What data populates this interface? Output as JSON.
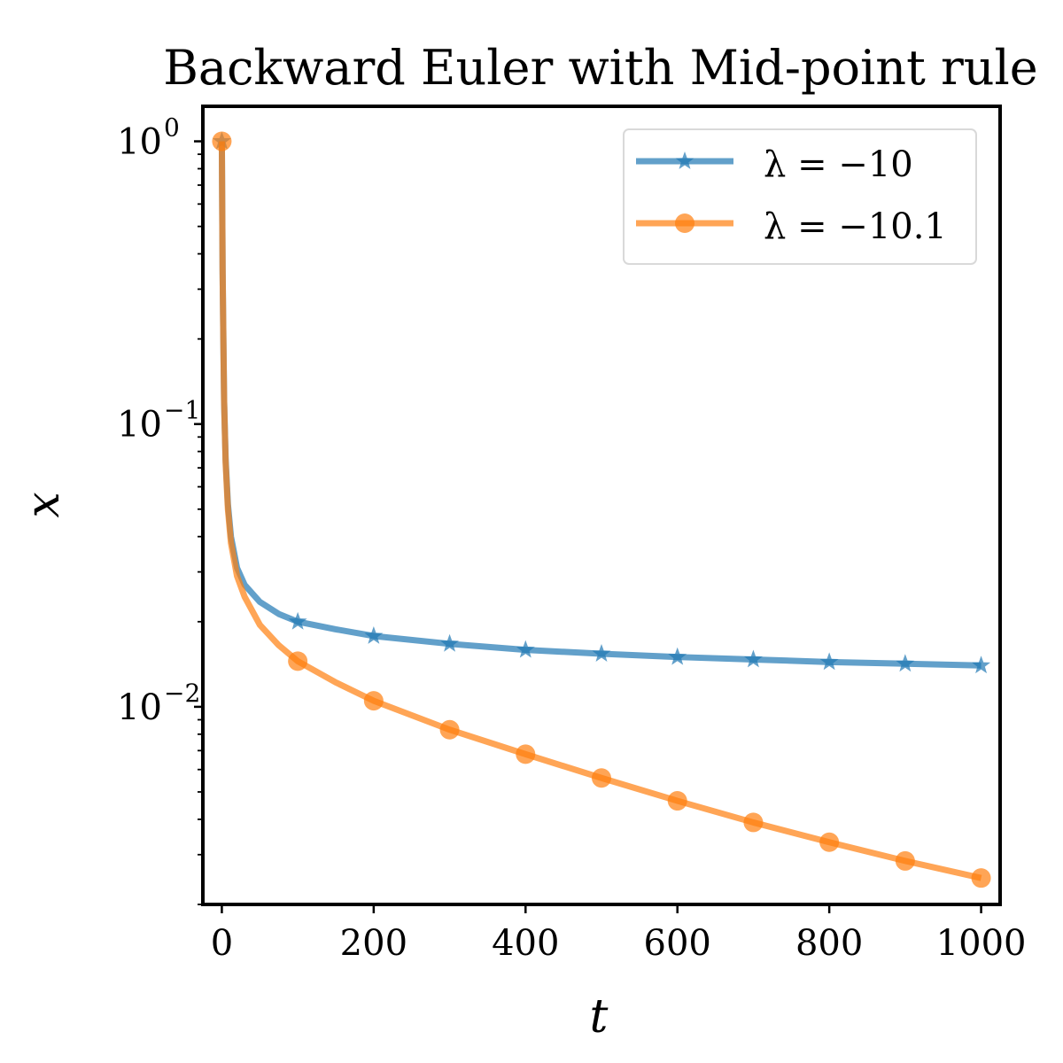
{
  "chart_data": {
    "type": "line",
    "title": "Backward Euler with Mid-point rule",
    "xlabel": "t",
    "ylabel": "x",
    "yscale": "log",
    "xlim": [
      -25,
      1025
    ],
    "ylim": [
      0.002,
      1.33
    ],
    "x_ticks": [
      0,
      200,
      400,
      600,
      800,
      1000
    ],
    "x_tick_labels": [
      "0",
      "200",
      "400",
      "600",
      "800",
      "1000"
    ],
    "y_ticks": [
      1,
      0.1,
      0.01
    ],
    "y_tick_labels": [
      {
        "base": "10",
        "exp": "0"
      },
      {
        "base": "10",
        "exp": "−1"
      },
      {
        "base": "10",
        "exp": "−2"
      }
    ],
    "grid": false,
    "legend_position": "top-right",
    "series": [
      {
        "name": "λ = −10",
        "color": "#1f77b4",
        "marker": "star",
        "curve_x": [
          0,
          1,
          2,
          3,
          5,
          8,
          12,
          20,
          30,
          50,
          75,
          100,
          150,
          200,
          300,
          400,
          500,
          600,
          700,
          800,
          900,
          1000
        ],
        "curve_y": [
          1.0,
          0.35,
          0.2,
          0.12,
          0.075,
          0.052,
          0.04,
          0.031,
          0.027,
          0.0235,
          0.0213,
          0.02,
          0.0188,
          0.0178,
          0.0167,
          0.0159,
          0.0154,
          0.015,
          0.0147,
          0.0144,
          0.0142,
          0.014
        ],
        "marker_x": [
          0,
          100,
          200,
          300,
          400,
          500,
          600,
          700,
          800,
          900,
          1000
        ],
        "marker_y": [
          1.0,
          0.02,
          0.0178,
          0.0167,
          0.0159,
          0.0154,
          0.015,
          0.0147,
          0.0144,
          0.0142,
          0.014
        ]
      },
      {
        "name": "λ = −10.1",
        "color": "#ff7f0e",
        "marker": "circle",
        "curve_x": [
          0,
          1,
          2,
          3,
          5,
          8,
          12,
          20,
          30,
          50,
          75,
          100,
          150,
          200,
          300,
          400,
          500,
          600,
          700,
          800,
          900,
          1000
        ],
        "curve_y": [
          1.0,
          0.35,
          0.2,
          0.12,
          0.073,
          0.05,
          0.038,
          0.029,
          0.0245,
          0.0195,
          0.0165,
          0.0145,
          0.0122,
          0.0105,
          0.0083,
          0.0068,
          0.0056,
          0.00465,
          0.0039,
          0.00332,
          0.00285,
          0.00248
        ],
        "marker_x": [
          0,
          100,
          200,
          300,
          400,
          500,
          600,
          700,
          800,
          900,
          1000
        ],
        "marker_y": [
          1.0,
          0.0145,
          0.0105,
          0.0083,
          0.0068,
          0.0056,
          0.00465,
          0.0039,
          0.00332,
          0.00285,
          0.00248
        ]
      }
    ]
  }
}
